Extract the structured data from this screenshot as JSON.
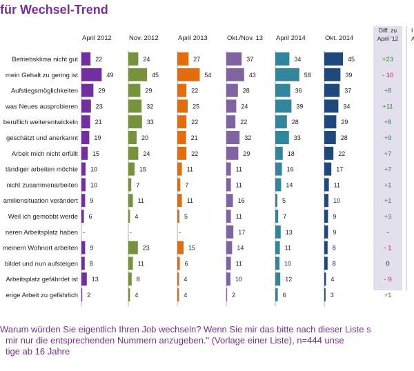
{
  "title": "für Wechsel-Trend",
  "footnote": {
    "line1": "Warum würden Sie eigentlich Ihren Job wechseln? Wenn Sie mir das bitte nach dieser Liste s",
    "line2": "mir nur die entsprechenden Nummern anzugeben.\" (Vorlage einer Liste), n=444 unse",
    "line3": "tige ab 16 Jahre"
  },
  "chart_data": {
    "type": "bar",
    "orientation": "horizontal",
    "title": "für Wechsel-Trend",
    "categories": [
      "Betriebsklima nicht gut",
      "mein Gehalt zu gering ist",
      "Aufstiegsmöglichkeiten",
      "was Neues ausprobieren",
      "beruflich weiterentwickeln",
      "geschätzt und anerkannt",
      "Arbeit mich nicht erfüllt",
      "tändiger arbeiten möchte",
      "nicht zusammenarbeiten",
      "amiliensituation verändert",
      "Weil ich gemobbt werde",
      "neren Arbeitsplatz haben",
      "meinem Wohnort arbeiten",
      "bildet und nun aufsteigen",
      "Arbeitsplatz gefährdet ist",
      "erige Arbeit zu gefährlich"
    ],
    "series": [
      {
        "name": "April 2012",
        "color": "#7030a0",
        "values": [
          22,
          49,
          29,
          23,
          21,
          19,
          15,
          10,
          10,
          9,
          6,
          null,
          9,
          8,
          13,
          2
        ]
      },
      {
        "name": "Nov. 2012",
        "color": "#76923c",
        "values": [
          24,
          45,
          29,
          32,
          33,
          20,
          24,
          15,
          7,
          11,
          4,
          null,
          23,
          11,
          8,
          4
        ]
      },
      {
        "name": "April 2013",
        "color": "#e46c0a",
        "values": [
          27,
          54,
          22,
          25,
          22,
          21,
          22,
          11,
          7,
          11,
          5,
          null,
          15,
          6,
          4,
          4
        ]
      },
      {
        "name": "Okt./Nov. 13",
        "color": "#8064a2",
        "values": [
          37,
          43,
          28,
          24,
          22,
          32,
          29,
          11,
          11,
          16,
          11,
          17,
          14,
          11,
          10,
          2
        ]
      },
      {
        "name": "April 2014",
        "color": "#31859c",
        "values": [
          34,
          58,
          36,
          39,
          28,
          33,
          18,
          16,
          14,
          5,
          7,
          13,
          11,
          10,
          12,
          6
        ]
      },
      {
        "name": "Okt. 2014",
        "color": "#1f497d",
        "values": [
          45,
          39,
          37,
          34,
          29,
          28,
          22,
          17,
          11,
          10,
          9,
          9,
          8,
          8,
          4,
          3
        ]
      }
    ],
    "diff": {
      "header_line1": "Diff. zu",
      "header_line2": "April '12",
      "values": [
        "+23",
        "- 10",
        "+8",
        "+11",
        "+8",
        "+9",
        "+7",
        "+7",
        "+1",
        "+1",
        "+3",
        "-",
        "- 1",
        "0",
        "- 9",
        "+1"
      ],
      "positive_color": "#2e8b3a",
      "negative_color": "#e02020",
      "neutral_color": "#222222"
    },
    "missing_label": "-",
    "extra_column_header": [
      "I",
      "A"
    ]
  }
}
